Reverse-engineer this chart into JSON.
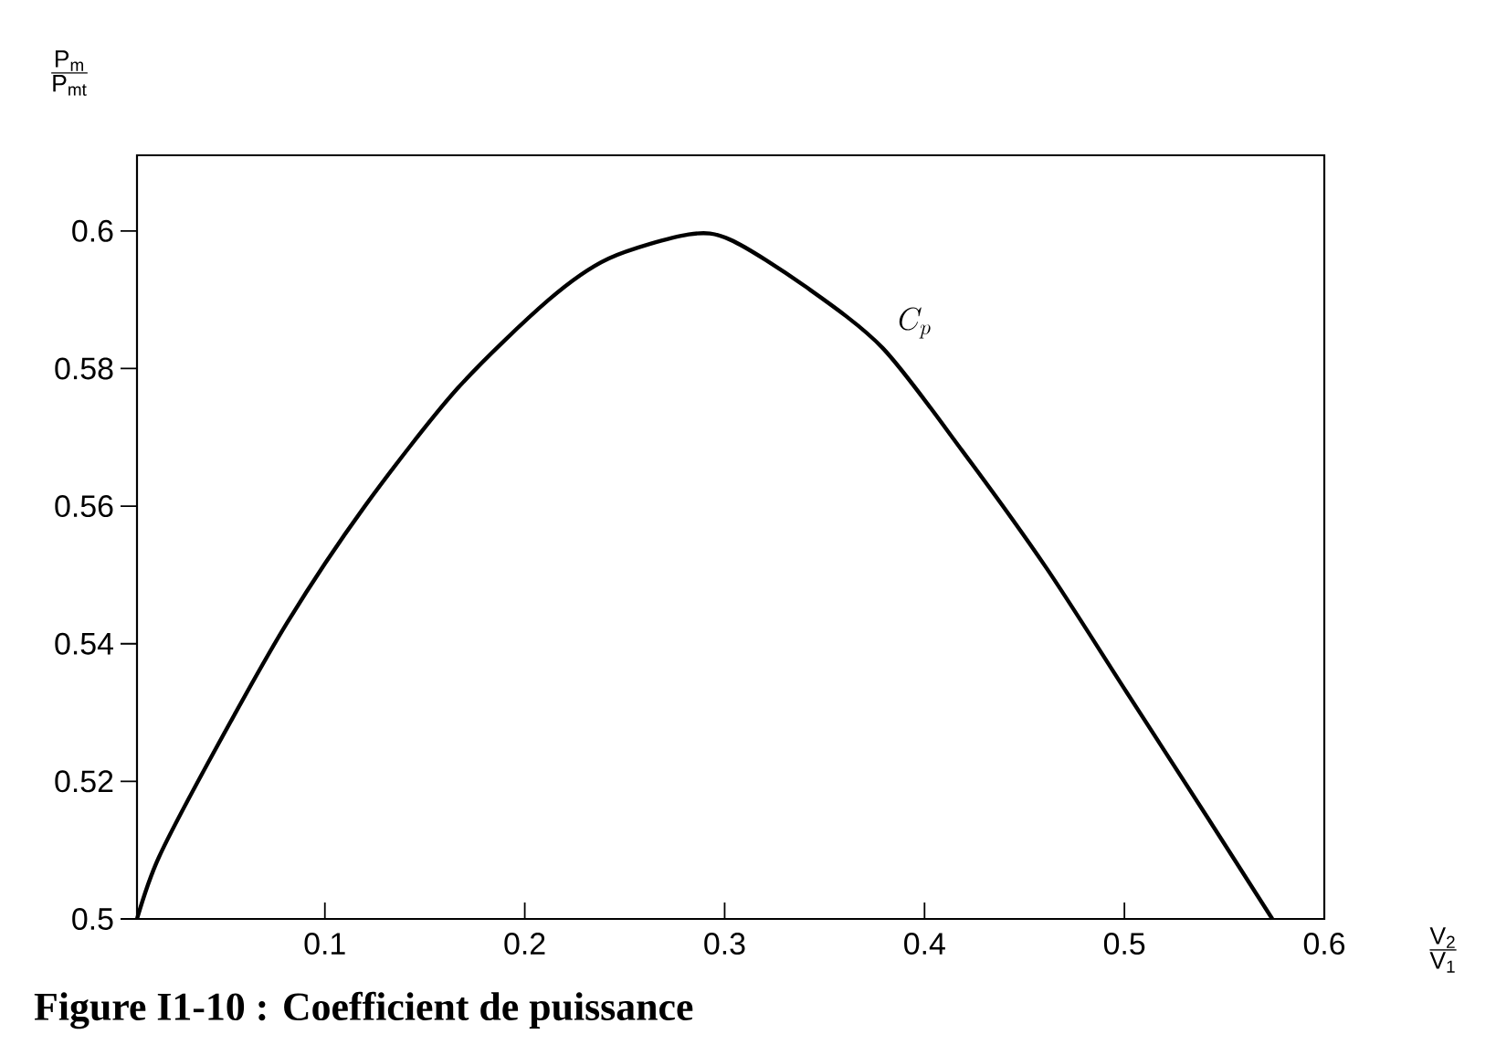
{
  "chart_data": {
    "type": "line",
    "title": "Figure I1-10 : Coefficient de puissance",
    "xlabel": "\\frac{\\mathrm{V_2}}{\\mathrm{V_1}}",
    "ylabel": "\\frac{\\mathrm{P_m}}{\\mathrm{P_{mt}}}",
    "x": [
      0.006,
      0.017,
      0.044,
      0.081,
      0.12,
      0.166,
      0.212,
      0.242,
      0.282,
      0.303,
      0.34,
      0.379,
      0.419,
      0.461,
      0.501,
      0.541,
      0.574
    ],
    "series": [
      {
        "color": "#000000",
        "values": [
          0.5,
          0.509,
          0.524,
          0.543,
          0.56,
          0.577,
          0.59,
          0.596,
          0.5995,
          0.5987,
          0.592,
          0.583,
          0.568,
          0.551,
          0.533,
          0.515,
          0.5
        ]
      }
    ],
    "xlim": [
      0.006,
      0.6
    ],
    "ylim": [
      0.5,
      0.611
    ],
    "xticks": [
      0.1,
      0.2,
      0.3,
      0.4,
      0.5,
      0.6
    ],
    "yticks": [
      0.5,
      0.52,
      0.54,
      0.56,
      0.58,
      0.6
    ],
    "annotations": [
      "C_p"
    ],
    "grid": false,
    "marker": "none",
    "line_style": "solid"
  }
}
